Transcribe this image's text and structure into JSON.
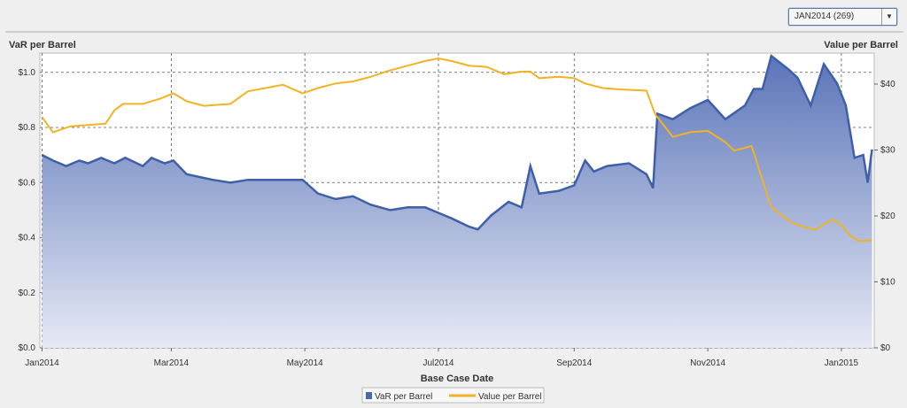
{
  "selector": {
    "value": "JAN2014 (269)"
  },
  "chart_data": {
    "type": "area+line",
    "xlabel": "Base Case Date",
    "ylabel_left": "VaR per Barrel",
    "ylabel_right": "Value per Barrel",
    "x_origin": "2014-01-01",
    "x_unit": "days since Jan 1 2014",
    "xlim": [
      -1,
      380
    ],
    "x_ticks": [
      {
        "day": 0,
        "label": "Jan2014"
      },
      {
        "day": 59,
        "label": "Mar2014"
      },
      {
        "day": 120,
        "label": "May2014"
      },
      {
        "day": 181,
        "label": "Jul2014"
      },
      {
        "day": 243,
        "label": "Sep2014"
      },
      {
        "day": 304,
        "label": "Nov2014"
      },
      {
        "day": 365,
        "label": "Jan2015"
      }
    ],
    "ylim_left": [
      0,
      1.07
    ],
    "y_ticks_left": [
      {
        "v": 0,
        "label": "$0.0"
      },
      {
        "v": 0.2,
        "label": "$0.2"
      },
      {
        "v": 0.4,
        "label": "$0.4"
      },
      {
        "v": 0.6,
        "label": "$0.6"
      },
      {
        "v": 0.8,
        "label": "$0.8"
      },
      {
        "v": 1.0,
        "label": "$1.0"
      }
    ],
    "ylim_right": [
      0,
      44.7
    ],
    "y_ticks_right": [
      {
        "v": 0,
        "label": "$0"
      },
      {
        "v": 10,
        "label": "$10"
      },
      {
        "v": 20,
        "label": "$20"
      },
      {
        "v": 30,
        "label": "$30"
      },
      {
        "v": 40,
        "label": "$40"
      }
    ],
    "grid": true,
    "legend": "bottom-center",
    "series": [
      {
        "name": "VaR per Barrel",
        "axis": "left",
        "kind": "area",
        "color": "#4a66ad",
        "points": [
          [
            0,
            0.7
          ],
          [
            5,
            0.68
          ],
          [
            11,
            0.66
          ],
          [
            17,
            0.68
          ],
          [
            21,
            0.67
          ],
          [
            27,
            0.69
          ],
          [
            33,
            0.67
          ],
          [
            38,
            0.69
          ],
          [
            46,
            0.66
          ],
          [
            50,
            0.69
          ],
          [
            56,
            0.67
          ],
          [
            60,
            0.68
          ],
          [
            66,
            0.63
          ],
          [
            78,
            0.61
          ],
          [
            86,
            0.6
          ],
          [
            94,
            0.61
          ],
          [
            102,
            0.61
          ],
          [
            110,
            0.61
          ],
          [
            119,
            0.61
          ],
          [
            126,
            0.56
          ],
          [
            134,
            0.54
          ],
          [
            142,
            0.55
          ],
          [
            150,
            0.52
          ],
          [
            159,
            0.5
          ],
          [
            167,
            0.51
          ],
          [
            175,
            0.51
          ],
          [
            181,
            0.49
          ],
          [
            187,
            0.47
          ],
          [
            195,
            0.44
          ],
          [
            199,
            0.43
          ],
          [
            205,
            0.48
          ],
          [
            213,
            0.53
          ],
          [
            219,
            0.51
          ],
          [
            223,
            0.66
          ],
          [
            227,
            0.56
          ],
          [
            236,
            0.57
          ],
          [
            243,
            0.59
          ],
          [
            248,
            0.68
          ],
          [
            252,
            0.64
          ],
          [
            258,
            0.66
          ],
          [
            268,
            0.67
          ],
          [
            276,
            0.63
          ],
          [
            279,
            0.58
          ],
          [
            281,
            0.85
          ],
          [
            288,
            0.83
          ],
          [
            296,
            0.87
          ],
          [
            304,
            0.9
          ],
          [
            312,
            0.83
          ],
          [
            321,
            0.88
          ],
          [
            325,
            0.94
          ],
          [
            329,
            0.94
          ],
          [
            333,
            1.06
          ],
          [
            341,
            1.01
          ],
          [
            345,
            0.98
          ],
          [
            351,
            0.88
          ],
          [
            357,
            1.03
          ],
          [
            363,
            0.96
          ],
          [
            367,
            0.88
          ],
          [
            371,
            0.69
          ],
          [
            375,
            0.7
          ],
          [
            377,
            0.6
          ],
          [
            379,
            0.72
          ]
        ]
      },
      {
        "name": "Value per Barrel",
        "axis": "right",
        "kind": "line",
        "color": "#f0b323",
        "points": [
          [
            0,
            35.0
          ],
          [
            5,
            32.7
          ],
          [
            13,
            33.6
          ],
          [
            21,
            33.8
          ],
          [
            29,
            34.0
          ],
          [
            33,
            36.0
          ],
          [
            37,
            37.0
          ],
          [
            46,
            37.0
          ],
          [
            54,
            37.8
          ],
          [
            60,
            38.6
          ],
          [
            66,
            37.4
          ],
          [
            74,
            36.7
          ],
          [
            86,
            37.0
          ],
          [
            94,
            38.9
          ],
          [
            102,
            39.4
          ],
          [
            110,
            39.9
          ],
          [
            119,
            38.6
          ],
          [
            126,
            39.4
          ],
          [
            134,
            40.1
          ],
          [
            142,
            40.4
          ],
          [
            150,
            41.1
          ],
          [
            159,
            42.1
          ],
          [
            167,
            42.8
          ],
          [
            175,
            43.5
          ],
          [
            181,
            43.9
          ],
          [
            187,
            43.5
          ],
          [
            195,
            42.8
          ],
          [
            203,
            42.6
          ],
          [
            211,
            41.5
          ],
          [
            219,
            41.9
          ],
          [
            223,
            41.9
          ],
          [
            227,
            40.9
          ],
          [
            236,
            41.1
          ],
          [
            243,
            40.9
          ],
          [
            248,
            40.1
          ],
          [
            256,
            39.4
          ],
          [
            264,
            39.2
          ],
          [
            276,
            39.0
          ],
          [
            280,
            35.4
          ],
          [
            288,
            32.0
          ],
          [
            296,
            32.7
          ],
          [
            304,
            32.9
          ],
          [
            312,
            31.2
          ],
          [
            316,
            29.9
          ],
          [
            324,
            30.6
          ],
          [
            333,
            21.3
          ],
          [
            341,
            19.3
          ],
          [
            345,
            18.6
          ],
          [
            353,
            17.9
          ],
          [
            361,
            19.5
          ],
          [
            365,
            18.6
          ],
          [
            369,
            17.0
          ],
          [
            373,
            16.2
          ],
          [
            379,
            16.3
          ]
        ]
      }
    ]
  }
}
